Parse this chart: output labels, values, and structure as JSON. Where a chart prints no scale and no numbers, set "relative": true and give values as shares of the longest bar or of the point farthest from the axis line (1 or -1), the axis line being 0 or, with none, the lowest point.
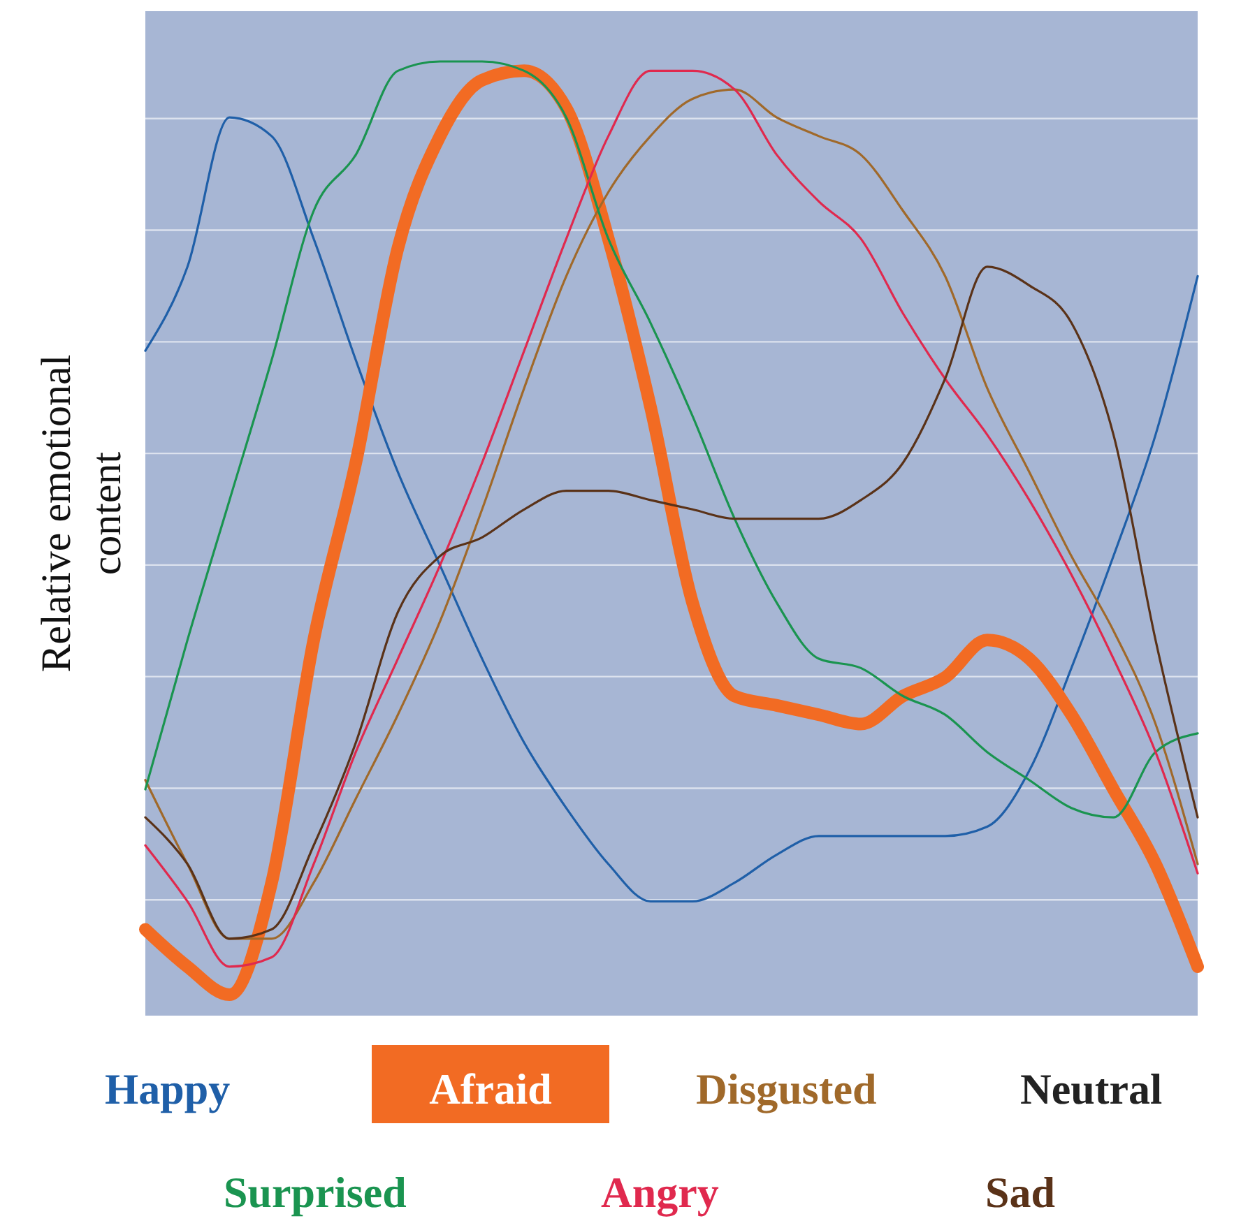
{
  "chart_data": {
    "type": "line",
    "ylabel": "Relative emotional content",
    "relative": true,
    "grid": true,
    "legend": "bottom",
    "categories": [
      null,
      null,
      null,
      null,
      null,
      null,
      null,
      null,
      null,
      null,
      null,
      null,
      null,
      null,
      null,
      null,
      null,
      null,
      null,
      null,
      null,
      null,
      null,
      null,
      null,
      null
    ],
    "series": [
      {
        "name": "Happy",
        "color": "#1f5fa8",
        "values": [
          0.69,
          0.78,
          0.94,
          0.92,
          0.81,
          0.68,
          0.56,
          0.46,
          0.36,
          0.27,
          0.2,
          0.14,
          0.1,
          0.1,
          0.12,
          0.15,
          0.17,
          0.17,
          0.17,
          0.17,
          0.18,
          0.24,
          0.35,
          0.47,
          0.6,
          0.77
        ]
      },
      {
        "name": "Afraid",
        "color": "#f26b23",
        "values": [
          0.07,
          0.03,
          0.0,
          0.12,
          0.38,
          0.57,
          0.8,
          0.92,
          0.98,
          0.99,
          0.95,
          0.81,
          0.63,
          0.42,
          0.32,
          0.31,
          0.3,
          0.29,
          0.32,
          0.34,
          0.38,
          0.36,
          0.3,
          0.22,
          0.14,
          0.03
        ]
      },
      {
        "name": "Disgusted",
        "color": "#a0692a",
        "values": [
          0.23,
          0.14,
          0.06,
          0.06,
          0.12,
          0.21,
          0.3,
          0.4,
          0.52,
          0.65,
          0.77,
          0.86,
          0.92,
          0.96,
          0.97,
          0.94,
          0.92,
          0.9,
          0.84,
          0.77,
          0.65,
          0.56,
          0.47,
          0.39,
          0.29,
          0.14
        ]
      },
      {
        "name": "Neutral",
        "color": "#222222",
        "values": [
          null,
          null,
          null,
          null,
          null,
          null,
          null,
          null,
          null,
          null,
          null,
          null,
          null,
          null,
          null,
          null,
          null,
          null,
          null,
          null,
          null,
          null,
          null,
          null,
          null,
          null
        ]
      },
      {
        "name": "Surprised",
        "color": "#1a9450",
        "values": [
          0.22,
          0.38,
          0.53,
          0.68,
          0.84,
          0.9,
          0.99,
          1.0,
          1.0,
          0.99,
          0.94,
          0.81,
          0.72,
          0.62,
          0.51,
          0.42,
          0.36,
          0.35,
          0.32,
          0.3,
          0.26,
          0.23,
          0.2,
          0.19,
          0.26,
          0.28
        ]
      },
      {
        "name": "Angry",
        "color": "#e0294e",
        "values": [
          0.16,
          0.1,
          0.03,
          0.04,
          0.14,
          0.26,
          0.36,
          0.46,
          0.57,
          0.69,
          0.81,
          0.92,
          0.99,
          0.99,
          0.97,
          0.9,
          0.85,
          0.81,
          0.73,
          0.66,
          0.6,
          0.53,
          0.45,
          0.36,
          0.26,
          0.13
        ]
      },
      {
        "name": "Sad",
        "color": "#5a3218",
        "values": [
          0.19,
          0.14,
          0.06,
          0.07,
          0.16,
          0.27,
          0.41,
          0.47,
          0.49,
          0.52,
          0.54,
          0.54,
          0.53,
          0.52,
          0.51,
          0.51,
          0.51,
          0.53,
          0.57,
          0.66,
          0.78,
          0.76,
          0.72,
          0.6,
          0.38,
          0.19
        ]
      }
    ]
  }
}
